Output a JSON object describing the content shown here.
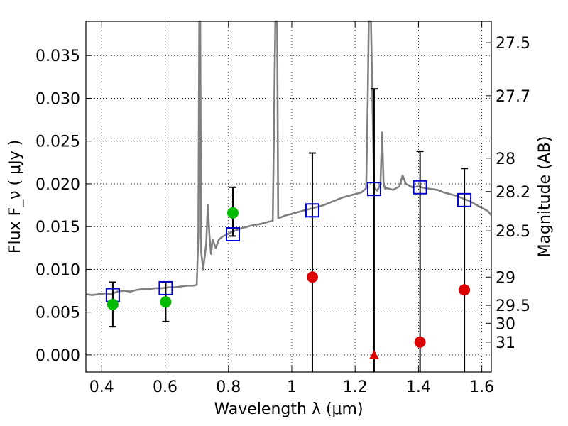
{
  "chart_data": {
    "type": "scatter",
    "xlabel": "Wavelength  λ (μm)",
    "ylabel": "Flux  F_ν  ( μJy )",
    "ylabel_right": "Magnitude (AB)",
    "xlim": [
      0.35,
      1.63
    ],
    "ylim": [
      -0.002,
      0.039
    ],
    "grid": true,
    "x_ticks": [
      0.4,
      0.6,
      0.8,
      1.0,
      1.2,
      1.4,
      1.6
    ],
    "x_tick_labels": [
      "0.4",
      "0.6",
      "0.8",
      "1",
      "1.2",
      "1.4",
      "1.6"
    ],
    "y_ticks": [
      0.0,
      0.005,
      0.01,
      0.015,
      0.02,
      0.025,
      0.03,
      0.035
    ],
    "y_tick_labels": [
      "0.000",
      "0.005",
      "0.010",
      "0.015",
      "0.020",
      "0.025",
      "0.030",
      "0.035"
    ],
    "right_ticks": [
      {
        "label": "27.5",
        "flux": 0.0365
      },
      {
        "label": "27.7",
        "flux": 0.0303
      },
      {
        "label": "28",
        "flux": 0.023
      },
      {
        "label": "28.2",
        "flux": 0.0191
      },
      {
        "label": "28.5",
        "flux": 0.0145
      },
      {
        "label": "29",
        "flux": 0.0091
      },
      {
        "label": "29.5",
        "flux": 0.0058
      },
      {
        "label": "30",
        "flux": 0.0037
      },
      {
        "label": "31",
        "flux": 0.0015
      }
    ],
    "spectrum": {
      "color": "#808080",
      "x": [
        0.35,
        0.37,
        0.39,
        0.41,
        0.43,
        0.45,
        0.47,
        0.49,
        0.51,
        0.53,
        0.55,
        0.57,
        0.59,
        0.61,
        0.63,
        0.65,
        0.67,
        0.69,
        0.7,
        0.705,
        0.708,
        0.711,
        0.714,
        0.72,
        0.73,
        0.735,
        0.74,
        0.745,
        0.75,
        0.76,
        0.77,
        0.78,
        0.8,
        0.82,
        0.84,
        0.86,
        0.88,
        0.9,
        0.92,
        0.94,
        0.948,
        0.951,
        0.954,
        0.957,
        0.96,
        0.98,
        1.0,
        1.02,
        1.04,
        1.06,
        1.08,
        1.1,
        1.12,
        1.14,
        1.16,
        1.18,
        1.2,
        1.22,
        1.235,
        1.24,
        1.243,
        1.246,
        1.25,
        1.26,
        1.27,
        1.28,
        1.285,
        1.29,
        1.295,
        1.3,
        1.32,
        1.34,
        1.35,
        1.36,
        1.38,
        1.4,
        1.42,
        1.44,
        1.46,
        1.48,
        1.5,
        1.52,
        1.54,
        1.56,
        1.58,
        1.6,
        1.62,
        1.63
      ],
      "y": [
        0.0071,
        0.007,
        0.0071,
        0.0072,
        0.0071,
        0.0074,
        0.0075,
        0.0074,
        0.0076,
        0.0077,
        0.0077,
        0.0078,
        0.0078,
        0.0079,
        0.0079,
        0.008,
        0.0081,
        0.0081,
        0.0082,
        0.014,
        0.039,
        0.039,
        0.012,
        0.01,
        0.013,
        0.0175,
        0.014,
        0.0118,
        0.0135,
        0.0125,
        0.0135,
        0.0138,
        0.0142,
        0.0145,
        0.0148,
        0.015,
        0.0152,
        0.0153,
        0.0155,
        0.0157,
        0.039,
        0.039,
        0.039,
        0.016,
        0.016,
        0.0163,
        0.0165,
        0.0167,
        0.0169,
        0.0171,
        0.0173,
        0.0175,
        0.0178,
        0.0181,
        0.0184,
        0.0186,
        0.0188,
        0.019,
        0.0195,
        0.03,
        0.039,
        0.039,
        0.039,
        0.0195,
        0.0192,
        0.02,
        0.026,
        0.02,
        0.0194,
        0.0195,
        0.0193,
        0.0197,
        0.021,
        0.02,
        0.0196,
        0.0197,
        0.0195,
        0.0194,
        0.0193,
        0.019,
        0.0188,
        0.0186,
        0.0183,
        0.018,
        0.0176,
        0.0172,
        0.0168,
        0.0163
      ]
    },
    "model_squares": {
      "color": "#0000cc",
      "x": [
        0.435,
        0.602,
        0.814,
        1.065,
        1.26,
        1.405,
        1.545
      ],
      "y": [
        0.007,
        0.0078,
        0.0141,
        0.0169,
        0.0194,
        0.0196,
        0.0181
      ]
    },
    "detections": {
      "color": "#00bb00",
      "x": [
        0.435,
        0.602,
        0.814
      ],
      "y": [
        0.0059,
        0.0062,
        0.0166
      ]
    },
    "nondetections": {
      "color": "#dd0000",
      "x": [
        1.065,
        1.26,
        1.405,
        1.545
      ],
      "y": [
        0.0091,
        0.0,
        0.0015,
        0.0076
      ],
      "marker": [
        "circle",
        "triangle",
        "circle",
        "circle"
      ]
    },
    "error_bars": [
      {
        "x": 0.435,
        "low": 0.0033,
        "high": 0.0085
      },
      {
        "x": 0.602,
        "low": 0.0039,
        "high": 0.0085
      },
      {
        "x": 0.814,
        "low": 0.0139,
        "high": 0.0196
      },
      {
        "x": 1.065,
        "low": -0.002,
        "high": 0.0236
      },
      {
        "x": 1.26,
        "low": -0.002,
        "high": 0.0311
      },
      {
        "x": 1.405,
        "low": -0.002,
        "high": 0.0238
      },
      {
        "x": 1.545,
        "low": -0.002,
        "high": 0.0218
      }
    ]
  }
}
